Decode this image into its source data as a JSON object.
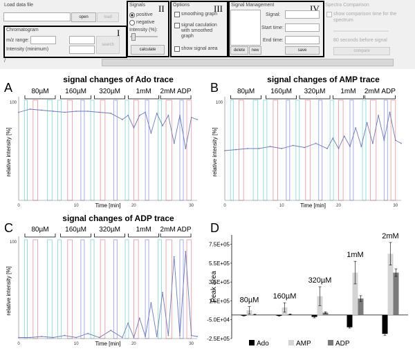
{
  "ui": {
    "load_data_file": "Load data file",
    "open": "open",
    "load": "load",
    "chromatogram": "Chromatogram",
    "mz_range": "m/z range:",
    "intensity_min": "Intensity (minimum)",
    "search": "search",
    "signals": "Signals",
    "positive": "positive",
    "negative": "negative",
    "intensity_pct": "Intensity (%):",
    "calculate": "calculate",
    "options": "Options",
    "smoothing": "smoothing graph",
    "signal_calc": "signal caculation with smoothed graph",
    "show_signal_area": "show signal area",
    "signal_management": "Signal Management",
    "signal": "Signal:",
    "start_time": "Start time:",
    "end_time": "End time:",
    "delete": "delete",
    "new": "new",
    "save": "save",
    "spectra_comparison": "Spectra Comparison",
    "show_comparison": "show comparison time for the spectrum",
    "seconds_before": "80 seconds before signal",
    "compare": "compare",
    "status_slash": "/",
    "roman_I": "I",
    "roman_II": "II",
    "roman_III": "III",
    "roman_IV": "IV"
  },
  "panels": {
    "A": {
      "letter": "A",
      "title": "signal changes of Ado trace"
    },
    "B": {
      "letter": "B",
      "title": "signal changes of AMP trace"
    },
    "C": {
      "letter": "C",
      "title": "signal changes of ADP trace"
    },
    "D": {
      "letter": "D"
    }
  },
  "conc_labels": [
    "80µM",
    "160µM",
    "320µM",
    "1mM",
    "2mM ADP"
  ],
  "trace_axes": {
    "ylabel": "relative intensity [%]",
    "xlabel": "Time [min]",
    "ymax_label": "100",
    "xticks": [
      "0",
      "10",
      "20",
      "30"
    ]
  },
  "chart_data": [
    {
      "type": "line",
      "title": "signal changes of Ado trace",
      "xlabel": "Time [min]",
      "ylabel": "relative intensity [%]",
      "xlim": [
        0,
        31
      ],
      "ylim": [
        0,
        100
      ],
      "x": [
        0,
        2,
        4,
        6,
        8,
        10,
        12,
        14,
        16,
        18,
        19,
        20,
        21,
        22,
        23,
        24,
        25,
        26,
        27,
        28,
        29,
        30,
        31
      ],
      "series": [
        {
          "values": [
            85,
            88,
            87,
            86,
            85,
            86,
            86,
            85,
            84,
            78,
            82,
            70,
            82,
            85,
            65,
            84,
            72,
            82,
            55,
            82,
            50,
            80,
            78
          ]
        }
      ]
    },
    {
      "type": "line",
      "title": "signal changes of AMP trace",
      "xlabel": "Time [min]",
      "ylabel": "relative intensity [%]",
      "xlim": [
        0,
        31
      ],
      "ylim": [
        0,
        100
      ],
      "x": [
        0,
        2,
        4,
        6,
        8,
        10,
        12,
        14,
        16,
        18,
        19,
        20,
        21,
        22,
        23,
        24,
        25,
        26,
        27,
        28,
        29,
        30,
        31
      ],
      "series": [
        {
          "values": [
            48,
            49,
            50,
            50,
            52,
            50,
            53,
            51,
            55,
            50,
            60,
            50,
            62,
            52,
            70,
            52,
            75,
            55,
            82,
            58,
            85,
            58,
            55
          ]
        }
      ]
    },
    {
      "type": "line",
      "title": "signal changes of ADP trace",
      "xlabel": "Time [min]",
      "ylabel": "relative intensity [%]",
      "xlim": [
        0,
        31
      ],
      "ylim": [
        0,
        100
      ],
      "x": [
        0,
        2,
        4,
        6,
        8,
        10,
        12,
        14,
        16,
        18,
        19,
        20,
        21,
        22,
        23,
        24,
        25,
        26,
        27,
        28,
        29,
        30,
        31
      ],
      "series": [
        {
          "values": [
            1,
            1,
            2,
            1,
            3,
            1,
            5,
            1,
            8,
            1,
            15,
            1,
            20,
            2,
            35,
            2,
            45,
            3,
            80,
            3,
            85,
            3,
            2
          ]
        }
      ]
    },
    {
      "type": "bar",
      "ylabel": "Peak area",
      "ylim": [
        -250000,
        850000
      ],
      "yticks": [
        "7.5E+05",
        "5.5E+05",
        "3.5E+05",
        "1.5E+05",
        "-5.0E+04",
        "-2.5E+05"
      ],
      "categories": [
        "80µM",
        "160µM",
        "320µM",
        "1mM",
        "2mM"
      ],
      "series": [
        {
          "name": "Ado",
          "values": [
            -5000,
            -8000,
            -20000,
            -130000,
            -200000
          ],
          "errors": [
            5000,
            5000,
            10000,
            10000,
            15000
          ]
        },
        {
          "name": "AMP",
          "values": [
            50000,
            80000,
            200000,
            450000,
            650000
          ],
          "errors": [
            40000,
            50000,
            100000,
            120000,
            120000
          ]
        },
        {
          "name": "ADP",
          "values": [
            5000,
            7000,
            25000,
            175000,
            450000
          ],
          "errors": [
            3000,
            5000,
            8000,
            30000,
            40000
          ]
        }
      ],
      "colors": [
        "#000000",
        "#d4d4d4",
        "#7a7a7a"
      ]
    }
  ]
}
